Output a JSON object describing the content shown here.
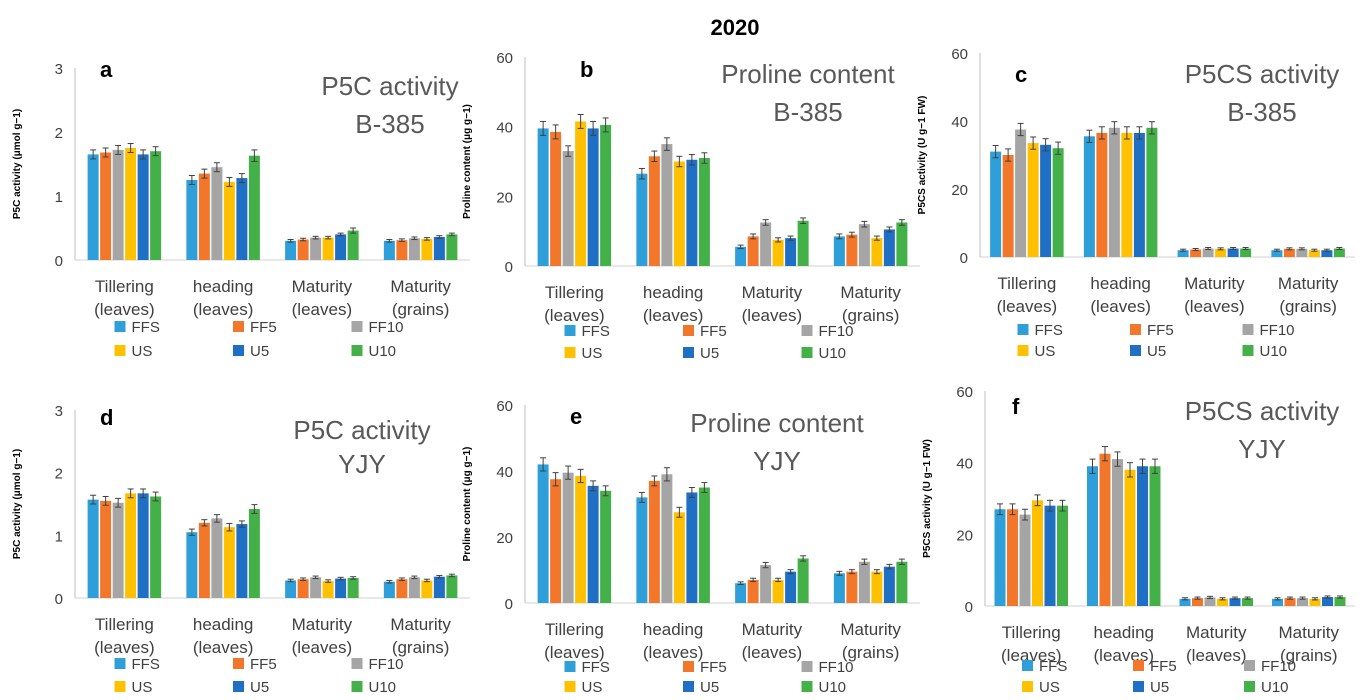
{
  "figure_title": "2020",
  "colors": {
    "FFS": "#2e9fd8",
    "FF5": "#f2772a",
    "FF10": "#a5a5a5",
    "US": "#ffc000",
    "U5": "#1f6fc4",
    "U10": "#44b048"
  },
  "chart_data": [
    {
      "type": "bar",
      "panel_letter": "a",
      "title_lines": [
        "P5C activity",
        "B-385"
      ],
      "ylabel": "P5C activity (μmol g−1)",
      "ylim": [
        0,
        3
      ],
      "yticks": [
        0,
        1,
        2,
        3
      ],
      "categories": [
        [
          "Tillering",
          "(leaves)"
        ],
        [
          "heading",
          "(leaves)"
        ],
        [
          "Maturity",
          "(leaves)"
        ],
        [
          "Maturity",
          "(grains)"
        ]
      ],
      "series": [
        {
          "name": "FFS",
          "values": [
            1.65,
            1.25,
            0.3,
            0.3
          ],
          "errors": [
            0.07,
            0.07,
            0.02,
            0.02
          ]
        },
        {
          "name": "FF5",
          "values": [
            1.68,
            1.35,
            0.32,
            0.31
          ],
          "errors": [
            0.07,
            0.07,
            0.02,
            0.02
          ]
        },
        {
          "name": "FF10",
          "values": [
            1.72,
            1.45,
            0.35,
            0.34
          ],
          "errors": [
            0.07,
            0.07,
            0.02,
            0.02
          ]
        },
        {
          "name": "US",
          "values": [
            1.75,
            1.22,
            0.35,
            0.33
          ],
          "errors": [
            0.07,
            0.07,
            0.02,
            0.02
          ]
        },
        {
          "name": "U5",
          "values": [
            1.65,
            1.28,
            0.4,
            0.36
          ],
          "errors": [
            0.07,
            0.07,
            0.02,
            0.02
          ]
        },
        {
          "name": "U10",
          "values": [
            1.7,
            1.63,
            0.46,
            0.4
          ],
          "errors": [
            0.07,
            0.09,
            0.04,
            0.02
          ]
        }
      ]
    },
    {
      "type": "bar",
      "panel_letter": "b",
      "title_lines": [
        "Proline content",
        "B-385"
      ],
      "ylabel": "Proline content (μg g−1)",
      "ylim": [
        0,
        60
      ],
      "yticks": [
        0,
        20,
        40,
        60
      ],
      "categories": [
        [
          "Tillering",
          "(leaves)"
        ],
        [
          "heading",
          "(leaves)"
        ],
        [
          "Maturity",
          "(leaves)"
        ],
        [
          "Maturity",
          "(grains)"
        ]
      ],
      "series": [
        {
          "name": "FFS",
          "values": [
            39.5,
            26.5,
            5.5,
            8.5
          ],
          "errors": [
            2,
            1.5,
            0.5,
            0.7
          ]
        },
        {
          "name": "FF5",
          "values": [
            38.5,
            31.5,
            8.5,
            9.0
          ],
          "errors": [
            2,
            1.5,
            0.7,
            0.7
          ]
        },
        {
          "name": "FF10",
          "values": [
            33.0,
            35.0,
            12.5,
            12.0
          ],
          "errors": [
            1.5,
            1.8,
            0.8,
            0.8
          ]
        },
        {
          "name": "US",
          "values": [
            41.5,
            30.0,
            7.5,
            8.0
          ],
          "errors": [
            2,
            1.5,
            0.6,
            0.6
          ]
        },
        {
          "name": "U5",
          "values": [
            39.5,
            30.5,
            8.0,
            10.5
          ],
          "errors": [
            2,
            1.5,
            0.6,
            0.7
          ]
        },
        {
          "name": "U10",
          "values": [
            40.5,
            31.0,
            13.0,
            12.5
          ],
          "errors": [
            2,
            1.5,
            0.8,
            0.8
          ]
        }
      ]
    },
    {
      "type": "bar",
      "panel_letter": "c",
      "title_lines": [
        "P5CS activity",
        "B-385"
      ],
      "ylabel": "P5CS activity (U g−1 FW)",
      "ylim": [
        0,
        60
      ],
      "yticks": [
        0,
        20,
        40,
        60
      ],
      "categories": [
        [
          "Tillering",
          "(leaves)"
        ],
        [
          "heading",
          "(leaves)"
        ],
        [
          "Maturity",
          "(leaves)"
        ],
        [
          "Maturity",
          "(grains)"
        ]
      ],
      "series": [
        {
          "name": "FFS",
          "values": [
            31.0,
            35.5,
            2.0,
            2.0
          ],
          "errors": [
            1.8,
            1.8,
            0.3,
            0.3
          ]
        },
        {
          "name": "FF5",
          "values": [
            30.0,
            36.5,
            2.2,
            2.4
          ],
          "errors": [
            1.8,
            1.8,
            0.3,
            0.3
          ]
        },
        {
          "name": "FF10",
          "values": [
            37.5,
            38.0,
            2.5,
            2.4
          ],
          "errors": [
            1.8,
            1.8,
            0.3,
            0.3
          ]
        },
        {
          "name": "US",
          "values": [
            33.5,
            36.5,
            2.4,
            2.0
          ],
          "errors": [
            1.8,
            1.8,
            0.3,
            0.3
          ]
        },
        {
          "name": "U5",
          "values": [
            33.0,
            36.5,
            2.5,
            2.0
          ],
          "errors": [
            1.8,
            1.8,
            0.3,
            0.3
          ]
        },
        {
          "name": "U10",
          "values": [
            32.0,
            38.0,
            2.5,
            2.5
          ],
          "errors": [
            1.8,
            1.8,
            0.3,
            0.3
          ]
        }
      ]
    },
    {
      "type": "bar",
      "panel_letter": "d",
      "title_lines": [
        "P5C activity",
        "YJY"
      ],
      "ylabel": "P5C activity (μmol g−1)",
      "ylim": [
        0,
        3
      ],
      "yticks": [
        0,
        1,
        2,
        3
      ],
      "categories": [
        [
          "Tillering",
          "(leaves)"
        ],
        [
          "heading",
          "(leaves)"
        ],
        [
          "Maturity",
          "(leaves)"
        ],
        [
          "Maturity",
          "(grains)"
        ]
      ],
      "series": [
        {
          "name": "FFS",
          "values": [
            1.57,
            1.05,
            0.28,
            0.26
          ],
          "errors": [
            0.07,
            0.05,
            0.02,
            0.02
          ]
        },
        {
          "name": "FF5",
          "values": [
            1.55,
            1.2,
            0.3,
            0.3
          ],
          "errors": [
            0.07,
            0.05,
            0.02,
            0.02
          ]
        },
        {
          "name": "FF10",
          "values": [
            1.52,
            1.27,
            0.33,
            0.33
          ],
          "errors": [
            0.07,
            0.06,
            0.02,
            0.02
          ]
        },
        {
          "name": "US",
          "values": [
            1.67,
            1.13,
            0.27,
            0.28
          ],
          "errors": [
            0.07,
            0.06,
            0.02,
            0.02
          ]
        },
        {
          "name": "U5",
          "values": [
            1.67,
            1.18,
            0.31,
            0.34
          ],
          "errors": [
            0.07,
            0.05,
            0.02,
            0.02
          ]
        },
        {
          "name": "U10",
          "values": [
            1.62,
            1.42,
            0.32,
            0.36
          ],
          "errors": [
            0.07,
            0.07,
            0.02,
            0.02
          ]
        }
      ]
    },
    {
      "type": "bar",
      "panel_letter": "e",
      "title_lines": [
        "Proline content",
        "YJY"
      ],
      "ylabel": "Proline content (μg g−1)",
      "ylim": [
        0,
        60
      ],
      "yticks": [
        0,
        20,
        40,
        60
      ],
      "categories": [
        [
          "Tillering",
          "(leaves)"
        ],
        [
          "heading",
          "(leaves)"
        ],
        [
          "Maturity",
          "(leaves)"
        ],
        [
          "Maturity",
          "(grains)"
        ]
      ],
      "series": [
        {
          "name": "FFS",
          "values": [
            42.0,
            32.0,
            6.0,
            9.0
          ],
          "errors": [
            2,
            1.5,
            0.4,
            0.6
          ]
        },
        {
          "name": "FF5",
          "values": [
            37.5,
            37.0,
            7.0,
            9.5
          ],
          "errors": [
            2,
            1.5,
            0.5,
            0.6
          ]
        },
        {
          "name": "FF10",
          "values": [
            39.5,
            39.0,
            11.5,
            12.5
          ],
          "errors": [
            2,
            2,
            0.8,
            0.8
          ]
        },
        {
          "name": "US",
          "values": [
            38.5,
            27.5,
            7.0,
            9.5
          ],
          "errors": [
            2,
            1.5,
            0.5,
            0.6
          ]
        },
        {
          "name": "U5",
          "values": [
            35.5,
            33.5,
            9.5,
            11.0
          ],
          "errors": [
            1.5,
            1.5,
            0.6,
            0.7
          ]
        },
        {
          "name": "U10",
          "values": [
            34.0,
            35.0,
            13.5,
            12.5
          ],
          "errors": [
            1.5,
            1.5,
            0.8,
            0.8
          ]
        }
      ]
    },
    {
      "type": "bar",
      "panel_letter": "f",
      "title_lines": [
        "P5CS activity",
        "YJY"
      ],
      "ylabel": "P5CS activity (U g−1 FW)",
      "ylim": [
        0,
        60
      ],
      "yticks": [
        0,
        20,
        40,
        60
      ],
      "categories": [
        [
          "Tillering",
          "(leaves)"
        ],
        [
          "heading",
          "(leaves)"
        ],
        [
          "Maturity",
          "(leaves)"
        ],
        [
          "Maturity",
          "(grains)"
        ]
      ],
      "series": [
        {
          "name": "FFS",
          "values": [
            27.0,
            39.0,
            2.0,
            2.0
          ],
          "errors": [
            1.5,
            2,
            0.3,
            0.3
          ]
        },
        {
          "name": "FF5",
          "values": [
            27.0,
            42.5,
            2.2,
            2.2
          ],
          "errors": [
            1.5,
            2,
            0.3,
            0.3
          ]
        },
        {
          "name": "FF10",
          "values": [
            25.5,
            41.0,
            2.4,
            2.2
          ],
          "errors": [
            1.5,
            2,
            0.3,
            0.3
          ]
        },
        {
          "name": "US",
          "values": [
            29.5,
            38.0,
            2.0,
            2.0
          ],
          "errors": [
            1.5,
            2,
            0.3,
            0.3
          ]
        },
        {
          "name": "U5",
          "values": [
            28.0,
            39.0,
            2.2,
            2.5
          ],
          "errors": [
            1.5,
            2,
            0.3,
            0.3
          ]
        },
        {
          "name": "U10",
          "values": [
            28.0,
            39.0,
            2.2,
            2.5
          ],
          "errors": [
            1.5,
            2,
            0.3,
            0.3
          ]
        }
      ]
    }
  ]
}
